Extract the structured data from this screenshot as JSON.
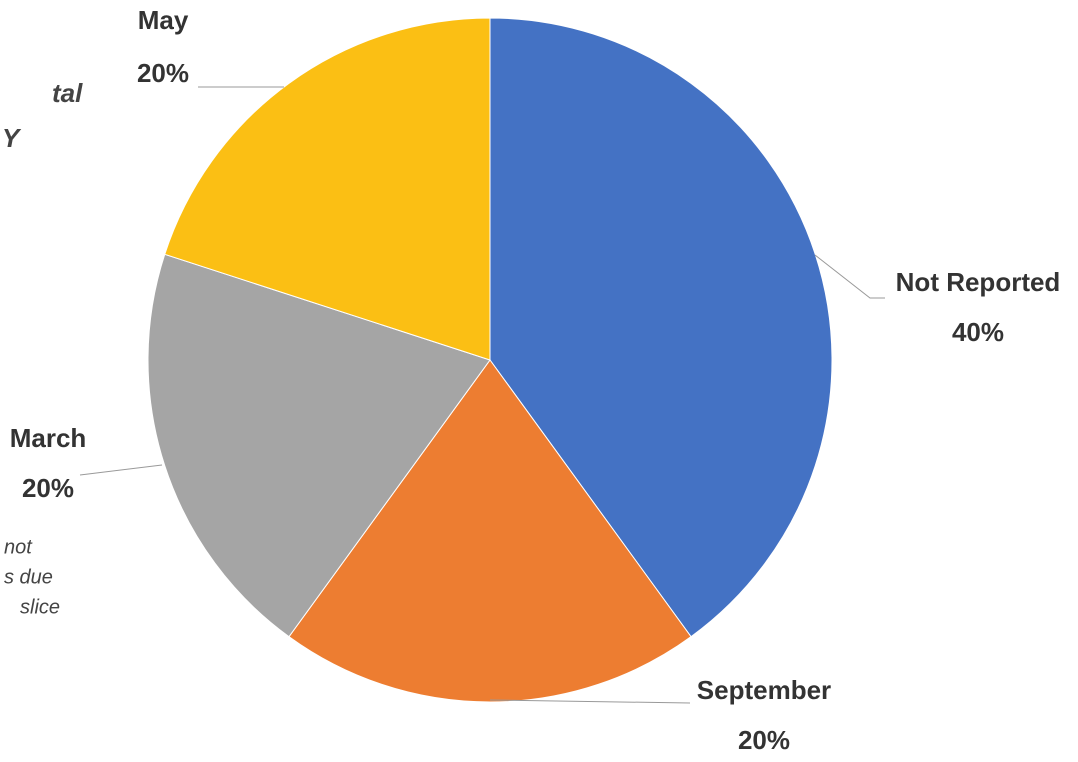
{
  "chart_data": {
    "type": "pie",
    "categories": [
      "Not Reported",
      "September",
      "March",
      "May"
    ],
    "values": [
      40,
      20,
      20,
      20
    ],
    "value_labels": [
      "40%",
      "20%",
      "20%",
      "20%"
    ],
    "colors": [
      "#4472c4",
      "#ed7d31",
      "#a5a5a5",
      "#fbbf14"
    ],
    "annotations": [
      "tal",
      "Y",
      "not",
      "s due",
      "slice"
    ]
  }
}
